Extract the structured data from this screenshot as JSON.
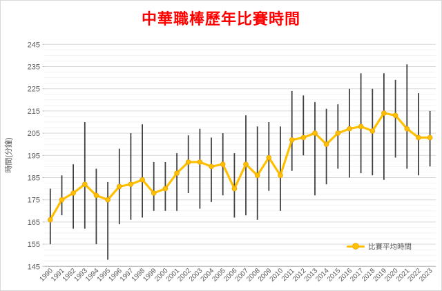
{
  "title": {
    "text": "中華職棒歷年比賽時間",
    "color": "#FF0000"
  },
  "legend": {
    "label": "比賽平均時間"
  },
  "colors": {
    "line": "#FFC000",
    "marker_edge": "#E8A000",
    "error_bar": "#404040",
    "grid_major": "#D9D9D9",
    "grid_minor": "#F2F2F2",
    "axis_line": "#BFBFBF",
    "axis_text": "#595959",
    "border": "#D9D9D9"
  },
  "chart_data": {
    "type": "line",
    "title": "中華職棒歷年比賽時間",
    "xlabel": "",
    "ylabel": "時間(分鐘)",
    "ylim": [
      145,
      245
    ],
    "y_major_unit": 10,
    "y_minor_unit": 2.5,
    "y_ticks": [
      145,
      155,
      165,
      175,
      185,
      195,
      205,
      215,
      225,
      235,
      245
    ],
    "grid": true,
    "legend_position": "bottom-right",
    "categories": [
      "1990",
      "1991",
      "1992",
      "1993",
      "1994",
      "1995",
      "1996",
      "1997",
      "1998",
      "1999",
      "2000",
      "2001",
      "2002",
      "2003",
      "2004",
      "2005",
      "2006",
      "2007",
      "2008",
      "2009",
      "2010",
      "2011",
      "2012",
      "2013",
      "2014",
      "2015",
      "2016",
      "2017",
      "2018",
      "2019",
      "2020",
      "2021",
      "2022",
      "2023"
    ],
    "series": [
      {
        "name": "比賽平均時間",
        "color": "#FFC000",
        "values": [
          166,
          175,
          178,
          182,
          177,
          175,
          181,
          182,
          184,
          178,
          180,
          187,
          192,
          192,
          190,
          191,
          180,
          191,
          186,
          194,
          186,
          202,
          203,
          205,
          200,
          205,
          207,
          208,
          206,
          214,
          213,
          207,
          203,
          203
        ]
      }
    ],
    "error_bars": {
      "low": [
        155,
        168,
        162,
        162,
        155,
        148,
        164,
        166,
        167,
        170,
        170,
        170,
        178,
        171,
        174,
        177,
        167,
        168,
        166,
        179,
        170,
        188,
        195,
        177,
        182,
        189,
        185,
        187,
        186,
        184,
        194,
        189,
        186,
        190
      ],
      "high": [
        180,
        186,
        191,
        210,
        189,
        183,
        198,
        205,
        209,
        192,
        192,
        196,
        204,
        207,
        203,
        205,
        196,
        213,
        208,
        210,
        208,
        224,
        222,
        219,
        216,
        218,
        225,
        232,
        225,
        232,
        229,
        236,
        223,
        215
      ]
    }
  }
}
